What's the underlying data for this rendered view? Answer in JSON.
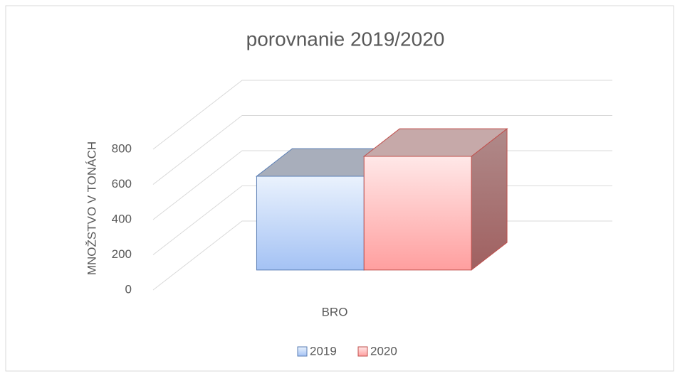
{
  "chart_data": {
    "type": "bar3d",
    "title": "porovnanie 2019/2020",
    "y_label": "MNOŽSTVO V TONÁCH",
    "categories": [
      "BRO"
    ],
    "series": [
      {
        "name": "2019",
        "color": "#a4c2f4",
        "values": [
          533
        ]
      },
      {
        "name": "2020",
        "color": "#ff9f9f",
        "values": [
          646
        ]
      }
    ],
    "ylim": [
      0,
      800
    ],
    "yticks": [
      0,
      200,
      400,
      600,
      800
    ],
    "grid": true,
    "legend": "bottom"
  }
}
